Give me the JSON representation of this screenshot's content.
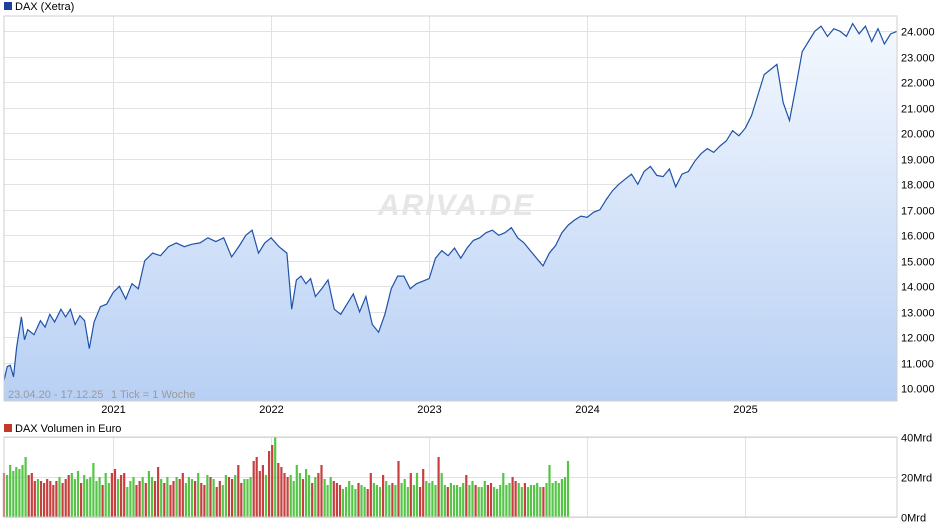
{
  "main_chart": {
    "legend": {
      "label": "DAX (Xetra)",
      "color": "#1f3f99"
    },
    "range_label": "23.04.20 - 17.12.25",
    "tick_label": "1 Tick = 1 Woche",
    "watermark": "ARIVA.DE"
  },
  "volume_chart": {
    "legend": {
      "label": "DAX Volumen in Euro",
      "color": "#c0392b"
    }
  },
  "chart_data": [
    {
      "type": "area",
      "series": [
        {
          "name": "DAX (Xetra)"
        }
      ],
      "x_ticks": [
        "2021",
        "2022",
        "2023",
        "2024",
        "2025"
      ],
      "x_tick_values": [
        2021.0,
        2022.0,
        2023.0,
        2024.0,
        2025.0
      ],
      "xlim": [
        2020.31,
        2025.96
      ],
      "ylim": [
        9500,
        24600
      ],
      "y_ticks": [
        10000,
        11000,
        12000,
        13000,
        14000,
        15000,
        16000,
        17000,
        18000,
        19000,
        20000,
        21000,
        22000,
        23000,
        24000
      ],
      "y_tick_labels": [
        "10.000",
        "11.000",
        "12.000",
        "13.000",
        "14.000",
        "15.000",
        "16.000",
        "17.000",
        "18.000",
        "19.000",
        "20.000",
        "21.000",
        "22.000",
        "23.000",
        "24.000"
      ],
      "grid": true,
      "line_color": "#1f52a8",
      "fill_top": "#f4f8fe",
      "fill_bottom": "#b8d0f4",
      "points": [
        [
          2020.31,
          10300
        ],
        [
          2020.33,
          10850
        ],
        [
          2020.35,
          10900
        ],
        [
          2020.37,
          10450
        ],
        [
          2020.39,
          11600
        ],
        [
          2020.42,
          12800
        ],
        [
          2020.44,
          11900
        ],
        [
          2020.46,
          12300
        ],
        [
          2020.5,
          12100
        ],
        [
          2020.54,
          12650
        ],
        [
          2020.57,
          12400
        ],
        [
          2020.6,
          12900
        ],
        [
          2020.63,
          12600
        ],
        [
          2020.67,
          13100
        ],
        [
          2020.7,
          12800
        ],
        [
          2020.73,
          13100
        ],
        [
          2020.76,
          12500
        ],
        [
          2020.79,
          12850
        ],
        [
          2020.82,
          12650
        ],
        [
          2020.85,
          11550
        ],
        [
          2020.88,
          12600
        ],
        [
          2020.92,
          13200
        ],
        [
          2020.96,
          13300
        ],
        [
          2021.0,
          13750
        ],
        [
          2021.04,
          14000
        ],
        [
          2021.08,
          13500
        ],
        [
          2021.12,
          14100
        ],
        [
          2021.16,
          13900
        ],
        [
          2021.2,
          15000
        ],
        [
          2021.25,
          15300
        ],
        [
          2021.3,
          15200
        ],
        [
          2021.35,
          15550
        ],
        [
          2021.4,
          15700
        ],
        [
          2021.45,
          15550
        ],
        [
          2021.5,
          15650
        ],
        [
          2021.55,
          15700
        ],
        [
          2021.6,
          15900
        ],
        [
          2021.65,
          15750
        ],
        [
          2021.7,
          15900
        ],
        [
          2021.75,
          15150
        ],
        [
          2021.8,
          15600
        ],
        [
          2021.84,
          16000
        ],
        [
          2021.88,
          16200
        ],
        [
          2021.92,
          15300
        ],
        [
          2021.96,
          15700
        ],
        [
          2022.0,
          15900
        ],
        [
          2022.05,
          15550
        ],
        [
          2022.1,
          15300
        ],
        [
          2022.13,
          13100
        ],
        [
          2022.16,
          14250
        ],
        [
          2022.19,
          14400
        ],
        [
          2022.22,
          14100
        ],
        [
          2022.25,
          14300
        ],
        [
          2022.28,
          13600
        ],
        [
          2022.32,
          13900
        ],
        [
          2022.36,
          14250
        ],
        [
          2022.4,
          13100
        ],
        [
          2022.44,
          12900
        ],
        [
          2022.48,
          13300
        ],
        [
          2022.52,
          13700
        ],
        [
          2022.56,
          13000
        ],
        [
          2022.6,
          13600
        ],
        [
          2022.64,
          12500
        ],
        [
          2022.68,
          12200
        ],
        [
          2022.72,
          12900
        ],
        [
          2022.76,
          13900
        ],
        [
          2022.8,
          14400
        ],
        [
          2022.84,
          14400
        ],
        [
          2022.88,
          13900
        ],
        [
          2022.92,
          14100
        ],
        [
          2022.96,
          14200
        ],
        [
          2023.0,
          14300
        ],
        [
          2023.04,
          15100
        ],
        [
          2023.08,
          15400
        ],
        [
          2023.12,
          15200
        ],
        [
          2023.16,
          15500
        ],
        [
          2023.2,
          15100
        ],
        [
          2023.24,
          15500
        ],
        [
          2023.28,
          15800
        ],
        [
          2023.32,
          15900
        ],
        [
          2023.36,
          16100
        ],
        [
          2023.4,
          16200
        ],
        [
          2023.44,
          16000
        ],
        [
          2023.48,
          16100
        ],
        [
          2023.52,
          16300
        ],
        [
          2023.56,
          15900
        ],
        [
          2023.6,
          15700
        ],
        [
          2023.64,
          15400
        ],
        [
          2023.68,
          15100
        ],
        [
          2023.72,
          14800
        ],
        [
          2023.76,
          15300
        ],
        [
          2023.8,
          15600
        ],
        [
          2023.84,
          16100
        ],
        [
          2023.88,
          16400
        ],
        [
          2023.92,
          16600
        ],
        [
          2023.96,
          16750
        ],
        [
          2024.0,
          16700
        ],
        [
          2024.04,
          16900
        ],
        [
          2024.08,
          17000
        ],
        [
          2024.12,
          17400
        ],
        [
          2024.16,
          17750
        ],
        [
          2024.2,
          18000
        ],
        [
          2024.24,
          18200
        ],
        [
          2024.28,
          18400
        ],
        [
          2024.32,
          18000
        ],
        [
          2024.36,
          18500
        ],
        [
          2024.4,
          18700
        ],
        [
          2024.44,
          18350
        ],
        [
          2024.48,
          18300
        ],
        [
          2024.52,
          18600
        ],
        [
          2024.56,
          17900
        ],
        [
          2024.6,
          18400
        ],
        [
          2024.64,
          18500
        ],
        [
          2024.68,
          18900
        ],
        [
          2024.72,
          19200
        ],
        [
          2024.76,
          19400
        ],
        [
          2024.8,
          19250
        ],
        [
          2024.84,
          19500
        ],
        [
          2024.88,
          19700
        ],
        [
          2024.92,
          20100
        ],
        [
          2024.96,
          19900
        ],
        [
          2025.0,
          20200
        ],
        [
          2025.04,
          20700
        ],
        [
          2025.08,
          21500
        ],
        [
          2025.12,
          22300
        ],
        [
          2025.16,
          22500
        ],
        [
          2025.2,
          22700
        ],
        [
          2025.24,
          21200
        ],
        [
          2025.28,
          20500
        ],
        [
          2025.32,
          21800
        ],
        [
          2025.36,
          23200
        ],
        [
          2025.4,
          23600
        ],
        [
          2025.44,
          24000
        ],
        [
          2025.48,
          24200
        ],
        [
          2025.52,
          23800
        ],
        [
          2025.56,
          24100
        ],
        [
          2025.6,
          24000
        ],
        [
          2025.64,
          23800
        ],
        [
          2025.68,
          24300
        ],
        [
          2025.72,
          23900
        ],
        [
          2025.76,
          24200
        ],
        [
          2025.8,
          23600
        ],
        [
          2025.84,
          24100
        ],
        [
          2025.88,
          23500
        ],
        [
          2025.92,
          23900
        ],
        [
          2025.96,
          24000
        ]
      ]
    },
    {
      "type": "bar",
      "series": [
        {
          "name": "DAX Volumen in Euro"
        }
      ],
      "x_ticks": [
        "2021",
        "2022",
        "2023",
        "2024",
        "2025"
      ],
      "xlim": [
        2020.31,
        2025.96
      ],
      "ylim": [
        0,
        40
      ],
      "y_ticks": [
        0,
        20,
        40
      ],
      "y_tick_labels": [
        "0Mrd",
        "20Mrd",
        "40Mrd"
      ],
      "up_color": "#55c447",
      "down_color": "#c64040",
      "x_start": 2020.31,
      "x_step": 0.0195,
      "values": [
        22,
        21,
        26,
        23,
        25,
        24,
        26,
        30,
        21,
        22,
        18,
        19,
        18,
        17,
        19,
        18,
        16,
        18,
        20,
        17,
        19,
        21,
        22,
        19,
        23,
        17,
        21,
        19,
        20,
        27,
        18,
        20,
        16,
        22,
        17,
        22,
        24,
        19,
        21,
        22,
        15,
        18,
        20,
        16,
        18,
        20,
        17,
        23,
        20,
        18,
        25,
        19,
        17,
        20,
        16,
        18,
        20,
        19,
        22,
        17,
        20,
        19,
        18,
        22,
        17,
        16,
        21,
        20,
        19,
        15,
        18,
        16,
        21,
        20,
        19,
        21,
        26,
        17,
        19,
        19,
        20,
        28,
        30,
        23,
        26,
        21,
        33,
        36,
        40,
        27,
        25,
        22,
        20,
        21,
        18,
        26,
        22,
        19,
        24,
        21,
        17,
        20,
        22,
        26,
        19,
        16,
        20,
        18,
        17,
        16,
        14,
        15,
        18,
        16,
        14,
        17,
        16,
        15,
        14,
        22,
        17,
        16,
        15,
        21,
        18,
        16,
        17,
        16,
        28,
        17,
        19,
        15,
        22,
        16,
        22,
        15,
        24,
        18,
        17,
        18,
        16,
        30,
        22,
        16,
        15,
        17,
        16,
        16,
        15,
        17,
        21,
        16,
        18,
        16,
        15,
        15,
        18,
        16,
        17,
        15,
        14,
        16,
        22,
        16,
        17,
        20,
        18,
        17,
        15,
        17,
        15,
        16,
        16,
        17,
        15,
        15,
        17,
        26,
        17,
        18,
        17,
        19,
        20,
        28
      ],
      "up": [
        0,
        1,
        1,
        1,
        1,
        1,
        1,
        1,
        0,
        0,
        0,
        1,
        0,
        0,
        0,
        0,
        0,
        0,
        1,
        0,
        0,
        0,
        1,
        1,
        1,
        0,
        1,
        1,
        1,
        1,
        1,
        1,
        0,
        1,
        1,
        0,
        0,
        1,
        0,
        0,
        1,
        1,
        1,
        0,
        0,
        1,
        0,
        1,
        1,
        0,
        0,
        1,
        0,
        1,
        0,
        0,
        1,
        0,
        0,
        1,
        1,
        1,
        0,
        1,
        0,
        0,
        1,
        0,
        1,
        0,
        0,
        1,
        1,
        0,
        0,
        1,
        0,
        0,
        1,
        1,
        1,
        0,
        0,
        0,
        0,
        1,
        0,
        0,
        1,
        0,
        0,
        0,
        0,
        1,
        1,
        1,
        1,
        0,
        1,
        1,
        0,
        1,
        0,
        0,
        1,
        1,
        1,
        0,
        0,
        0,
        1,
        1,
        1,
        1,
        1,
        0,
        1,
        1,
        0,
        0,
        1,
        1,
        1,
        0,
        1,
        1,
        0,
        1,
        0,
        1,
        1,
        1,
        0,
        1,
        1,
        0,
        0,
        1,
        1,
        1,
        1,
        0,
        1,
        1,
        0,
        1,
        1,
        1,
        1,
        1,
        0,
        1,
        1,
        0,
        1,
        1,
        1,
        0,
        0,
        1,
        1,
        1,
        1,
        1,
        1,
        0,
        0,
        1,
        1,
        0,
        1,
        1,
        1,
        1,
        1,
        0,
        1,
        1,
        1,
        1,
        1,
        1,
        1,
        1
      ]
    }
  ]
}
